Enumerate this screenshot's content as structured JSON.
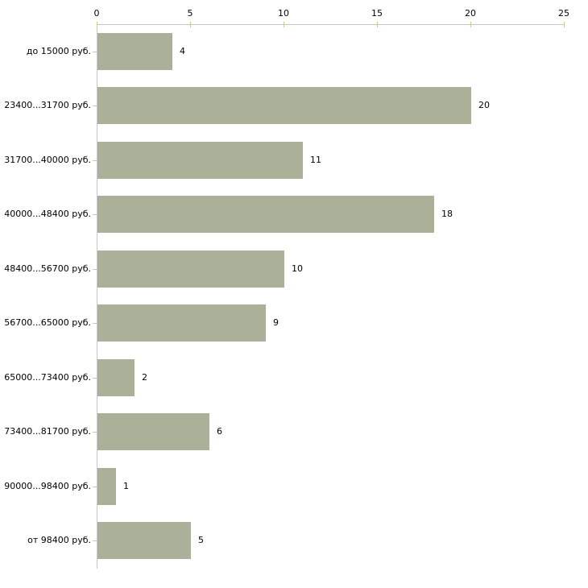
{
  "chart_data": {
    "type": "bar",
    "orientation": "horizontal",
    "title": "",
    "xlabel": "",
    "ylabel": "",
    "categories": [
      "до 15000 руб.",
      "23400...31700 руб.",
      "31700...40000 руб.",
      "40000...48400 руб.",
      "48400...56700 руб.",
      "56700...65000 руб.",
      "65000...73400 руб.",
      "73400...81700 руб.",
      "90000...98400 руб.",
      "от 98400 руб."
    ],
    "values": [
      4,
      20,
      11,
      18,
      10,
      9,
      2,
      6,
      1,
      5
    ],
    "xlim": [
      0,
      25
    ],
    "x_ticks": [
      0,
      5,
      10,
      15,
      20,
      25
    ],
    "axis_position": "top",
    "grid": false,
    "legend": false,
    "data_labels": true,
    "colors": {
      "bar": "#ABB198",
      "tick_mark": "#C9C98F",
      "axis_line": "#C6C6C6",
      "text": "#000000",
      "background": "#FFFFFF"
    }
  }
}
